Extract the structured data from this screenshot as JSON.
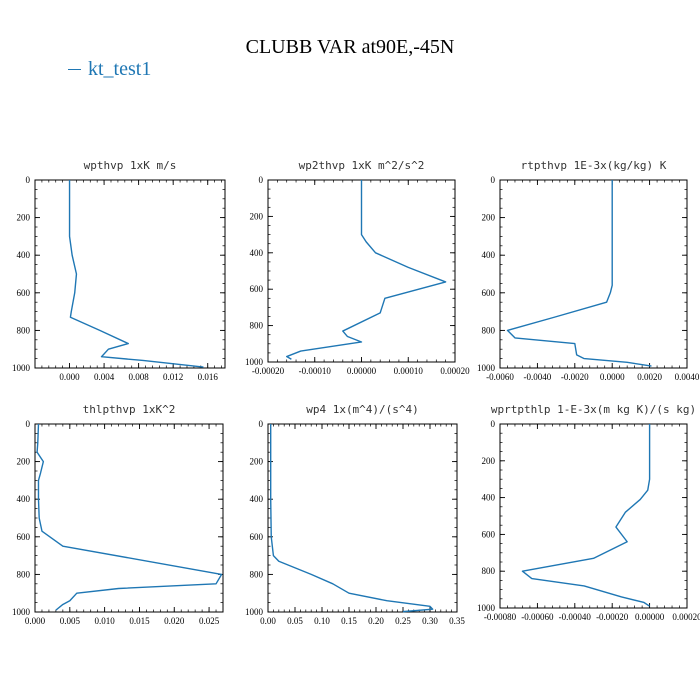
{
  "title": "CLUBB VAR at90E,-45N",
  "legend": {
    "label": "kt_test1",
    "color": "#1f77b4"
  },
  "chart_data": [
    {
      "type": "line",
      "title": "wpthvp  1xK m/s",
      "xlim": [
        -0.004,
        0.018
      ],
      "ylim": [
        1000,
        0
      ],
      "y_inverted": true,
      "xticks": [
        0.0,
        0.004,
        0.008,
        0.012,
        0.016
      ],
      "xtick_labels": [
        "0.000",
        "0.004",
        "0.008",
        "0.012",
        "0.016"
      ],
      "yticks": [
        0,
        200,
        400,
        600,
        800,
        1000
      ],
      "ytick_labels": [
        "0",
        "200",
        "400",
        "600",
        "800",
        "1000"
      ],
      "series": [
        {
          "name": "kt_test1",
          "color": "#1f77b4",
          "points": [
            [
              0.0,
              0
            ],
            [
              0.0,
              100
            ],
            [
              0.0,
              200
            ],
            [
              0.0,
              300
            ],
            [
              0.0003,
              400
            ],
            [
              0.0008,
              500
            ],
            [
              0.0006,
              600
            ],
            [
              0.0002,
              700
            ],
            [
              0.0001,
              730
            ],
            [
              0.0035,
              800
            ],
            [
              0.0068,
              870
            ],
            [
              0.0045,
              900
            ],
            [
              0.0037,
              940
            ],
            [
              0.0085,
              960
            ],
            [
              0.0155,
              995
            ]
          ]
        }
      ]
    },
    {
      "type": "line",
      "title": "wp2thvp  1xK m^2/s^2",
      "xlim": [
        -0.0002,
        0.0002
      ],
      "ylim": [
        1000,
        0
      ],
      "y_inverted": true,
      "xticks": [
        -0.0002,
        -0.0001,
        0.0,
        0.0001,
        0.0002
      ],
      "xtick_labels": [
        "-0.00020",
        "-0.00010",
        "0.00000",
        "0.00010",
        "0.00020"
      ],
      "yticks": [
        0,
        200,
        400,
        600,
        800,
        1000
      ],
      "ytick_labels": [
        "0",
        "200",
        "400",
        "600",
        "800",
        "1000"
      ],
      "series": [
        {
          "name": "kt_test1",
          "color": "#1f77b4",
          "points": [
            [
              0.0,
              0
            ],
            [
              0.0,
              100
            ],
            [
              0.0,
              200
            ],
            [
              0.0,
              300
            ],
            [
              1e-05,
              340
            ],
            [
              3e-05,
              400
            ],
            [
              0.0001,
              480
            ],
            [
              0.00018,
              560
            ],
            [
              5e-05,
              650
            ],
            [
              4e-05,
              730
            ],
            [
              -4e-05,
              830
            ],
            [
              -3e-05,
              860
            ],
            [
              0.0,
              890
            ],
            [
              -0.00013,
              940
            ],
            [
              -0.00016,
              970
            ],
            [
              -0.00015,
              985
            ]
          ]
        }
      ]
    },
    {
      "type": "line",
      "title": "rtpthvp  1E-3x(kg/kg) K",
      "xlim": [
        -0.006,
        0.004
      ],
      "ylim": [
        1000,
        0
      ],
      "y_inverted": true,
      "xticks": [
        -0.006,
        -0.004,
        -0.002,
        0.0,
        0.002,
        0.004
      ],
      "xtick_labels": [
        "-0.0060",
        "-0.0040",
        "-0.0020",
        "0.0000",
        "0.0020",
        "0.0040"
      ],
      "yticks": [
        0,
        200,
        400,
        600,
        800,
        1000
      ],
      "ytick_labels": [
        "0",
        "200",
        "400",
        "600",
        "800",
        "1000"
      ],
      "series": [
        {
          "name": "kt_test1",
          "color": "#1f77b4",
          "points": [
            [
              0.0,
              0
            ],
            [
              0.0,
              200
            ],
            [
              0.0,
              400
            ],
            [
              0.0,
              560
            ],
            [
              -0.0001,
              600
            ],
            [
              -0.0003,
              650
            ],
            [
              -0.0031,
              730
            ],
            [
              -0.0056,
              800
            ],
            [
              -0.0052,
              840
            ],
            [
              -0.002,
              870
            ],
            [
              -0.0019,
              930
            ],
            [
              -0.0015,
              950
            ],
            [
              0.0008,
              970
            ],
            [
              0.0021,
              990
            ]
          ]
        }
      ]
    },
    {
      "type": "line",
      "title": "thlpthvp  1xK^2",
      "xlim": [
        0.0,
        0.027
      ],
      "ylim": [
        1000,
        0
      ],
      "y_inverted": true,
      "xticks": [
        0.0,
        0.005,
        0.01,
        0.015,
        0.02,
        0.025
      ],
      "xtick_labels": [
        "0.000",
        "0.005",
        "0.010",
        "0.015",
        "0.020",
        "0.025"
      ],
      "yticks": [
        0,
        200,
        400,
        600,
        800,
        1000
      ],
      "ytick_labels": [
        "0",
        "200",
        "400",
        "600",
        "800",
        "1000"
      ],
      "series": [
        {
          "name": "kt_test1",
          "color": "#1f77b4",
          "points": [
            [
              0.0005,
              0
            ],
            [
              0.0004,
              100
            ],
            [
              0.0003,
              150
            ],
            [
              0.0012,
              200
            ],
            [
              0.0008,
              260
            ],
            [
              0.0005,
              300
            ],
            [
              0.0005,
              400
            ],
            [
              0.0006,
              500
            ],
            [
              0.001,
              570
            ],
            [
              0.004,
              650
            ],
            [
              0.0268,
              800
            ],
            [
              0.026,
              850
            ],
            [
              0.012,
              875
            ],
            [
              0.006,
              900
            ],
            [
              0.005,
              940
            ],
            [
              0.004,
              960
            ],
            [
              0.003,
              990
            ]
          ]
        }
      ]
    },
    {
      "type": "line",
      "title": "wp4  1x(m^4)/(s^4)",
      "xlim": [
        0.0,
        0.35
      ],
      "ylim": [
        1000,
        0
      ],
      "y_inverted": true,
      "xticks": [
        0.0,
        0.05,
        0.1,
        0.15,
        0.2,
        0.25,
        0.3,
        0.35
      ],
      "xtick_labels": [
        "0.00",
        "0.05",
        "0.10",
        "0.15",
        "0.20",
        "0.25",
        "0.30",
        "0.35"
      ],
      "yticks": [
        0,
        200,
        400,
        600,
        800,
        1000
      ],
      "ytick_labels": [
        "0",
        "200",
        "400",
        "600",
        "800",
        "1000"
      ],
      "series": [
        {
          "name": "kt_test1",
          "color": "#1f77b4",
          "points": [
            [
              0.005,
              0
            ],
            [
              0.005,
              200
            ],
            [
              0.005,
              400
            ],
            [
              0.006,
              600
            ],
            [
              0.01,
              700
            ],
            [
              0.02,
              730
            ],
            [
              0.08,
              800
            ],
            [
              0.12,
              850
            ],
            [
              0.15,
              900
            ],
            [
              0.22,
              940
            ],
            [
              0.3,
              970
            ],
            [
              0.305,
              985
            ],
            [
              0.25,
              998
            ]
          ]
        }
      ]
    },
    {
      "type": "line",
      "title": "wprtpthlp  1-E-3x(m kg K)/(s kg)",
      "xlim": [
        -0.0008,
        0.0002
      ],
      "ylim": [
        1000,
        0
      ],
      "y_inverted": true,
      "xticks": [
        -0.0008,
        -0.0006,
        -0.0004,
        -0.0002,
        0.0,
        0.0002
      ],
      "xtick_labels": [
        "-0.00080",
        "-0.00060",
        "-0.00040",
        "-0.00020",
        "0.00000",
        "0.00020"
      ],
      "yticks": [
        0,
        200,
        400,
        600,
        800,
        1000
      ],
      "ytick_labels": [
        "0",
        "200",
        "400",
        "600",
        "800",
        "1000"
      ],
      "series": [
        {
          "name": "kt_test1",
          "color": "#1f77b4",
          "points": [
            [
              0.0,
              0
            ],
            [
              0.0,
              200
            ],
            [
              0.0,
              300
            ],
            [
              -1e-05,
              360
            ],
            [
              -5e-05,
              410
            ],
            [
              -0.00013,
              480
            ],
            [
              -0.00018,
              560
            ],
            [
              -0.00012,
              640
            ],
            [
              -0.0003,
              730
            ],
            [
              -0.00068,
              800
            ],
            [
              -0.00063,
              840
            ],
            [
              -0.00035,
              880
            ],
            [
              -0.00015,
              940
            ],
            [
              -3e-05,
              970
            ],
            [
              0.0,
              990
            ]
          ]
        }
      ]
    }
  ]
}
